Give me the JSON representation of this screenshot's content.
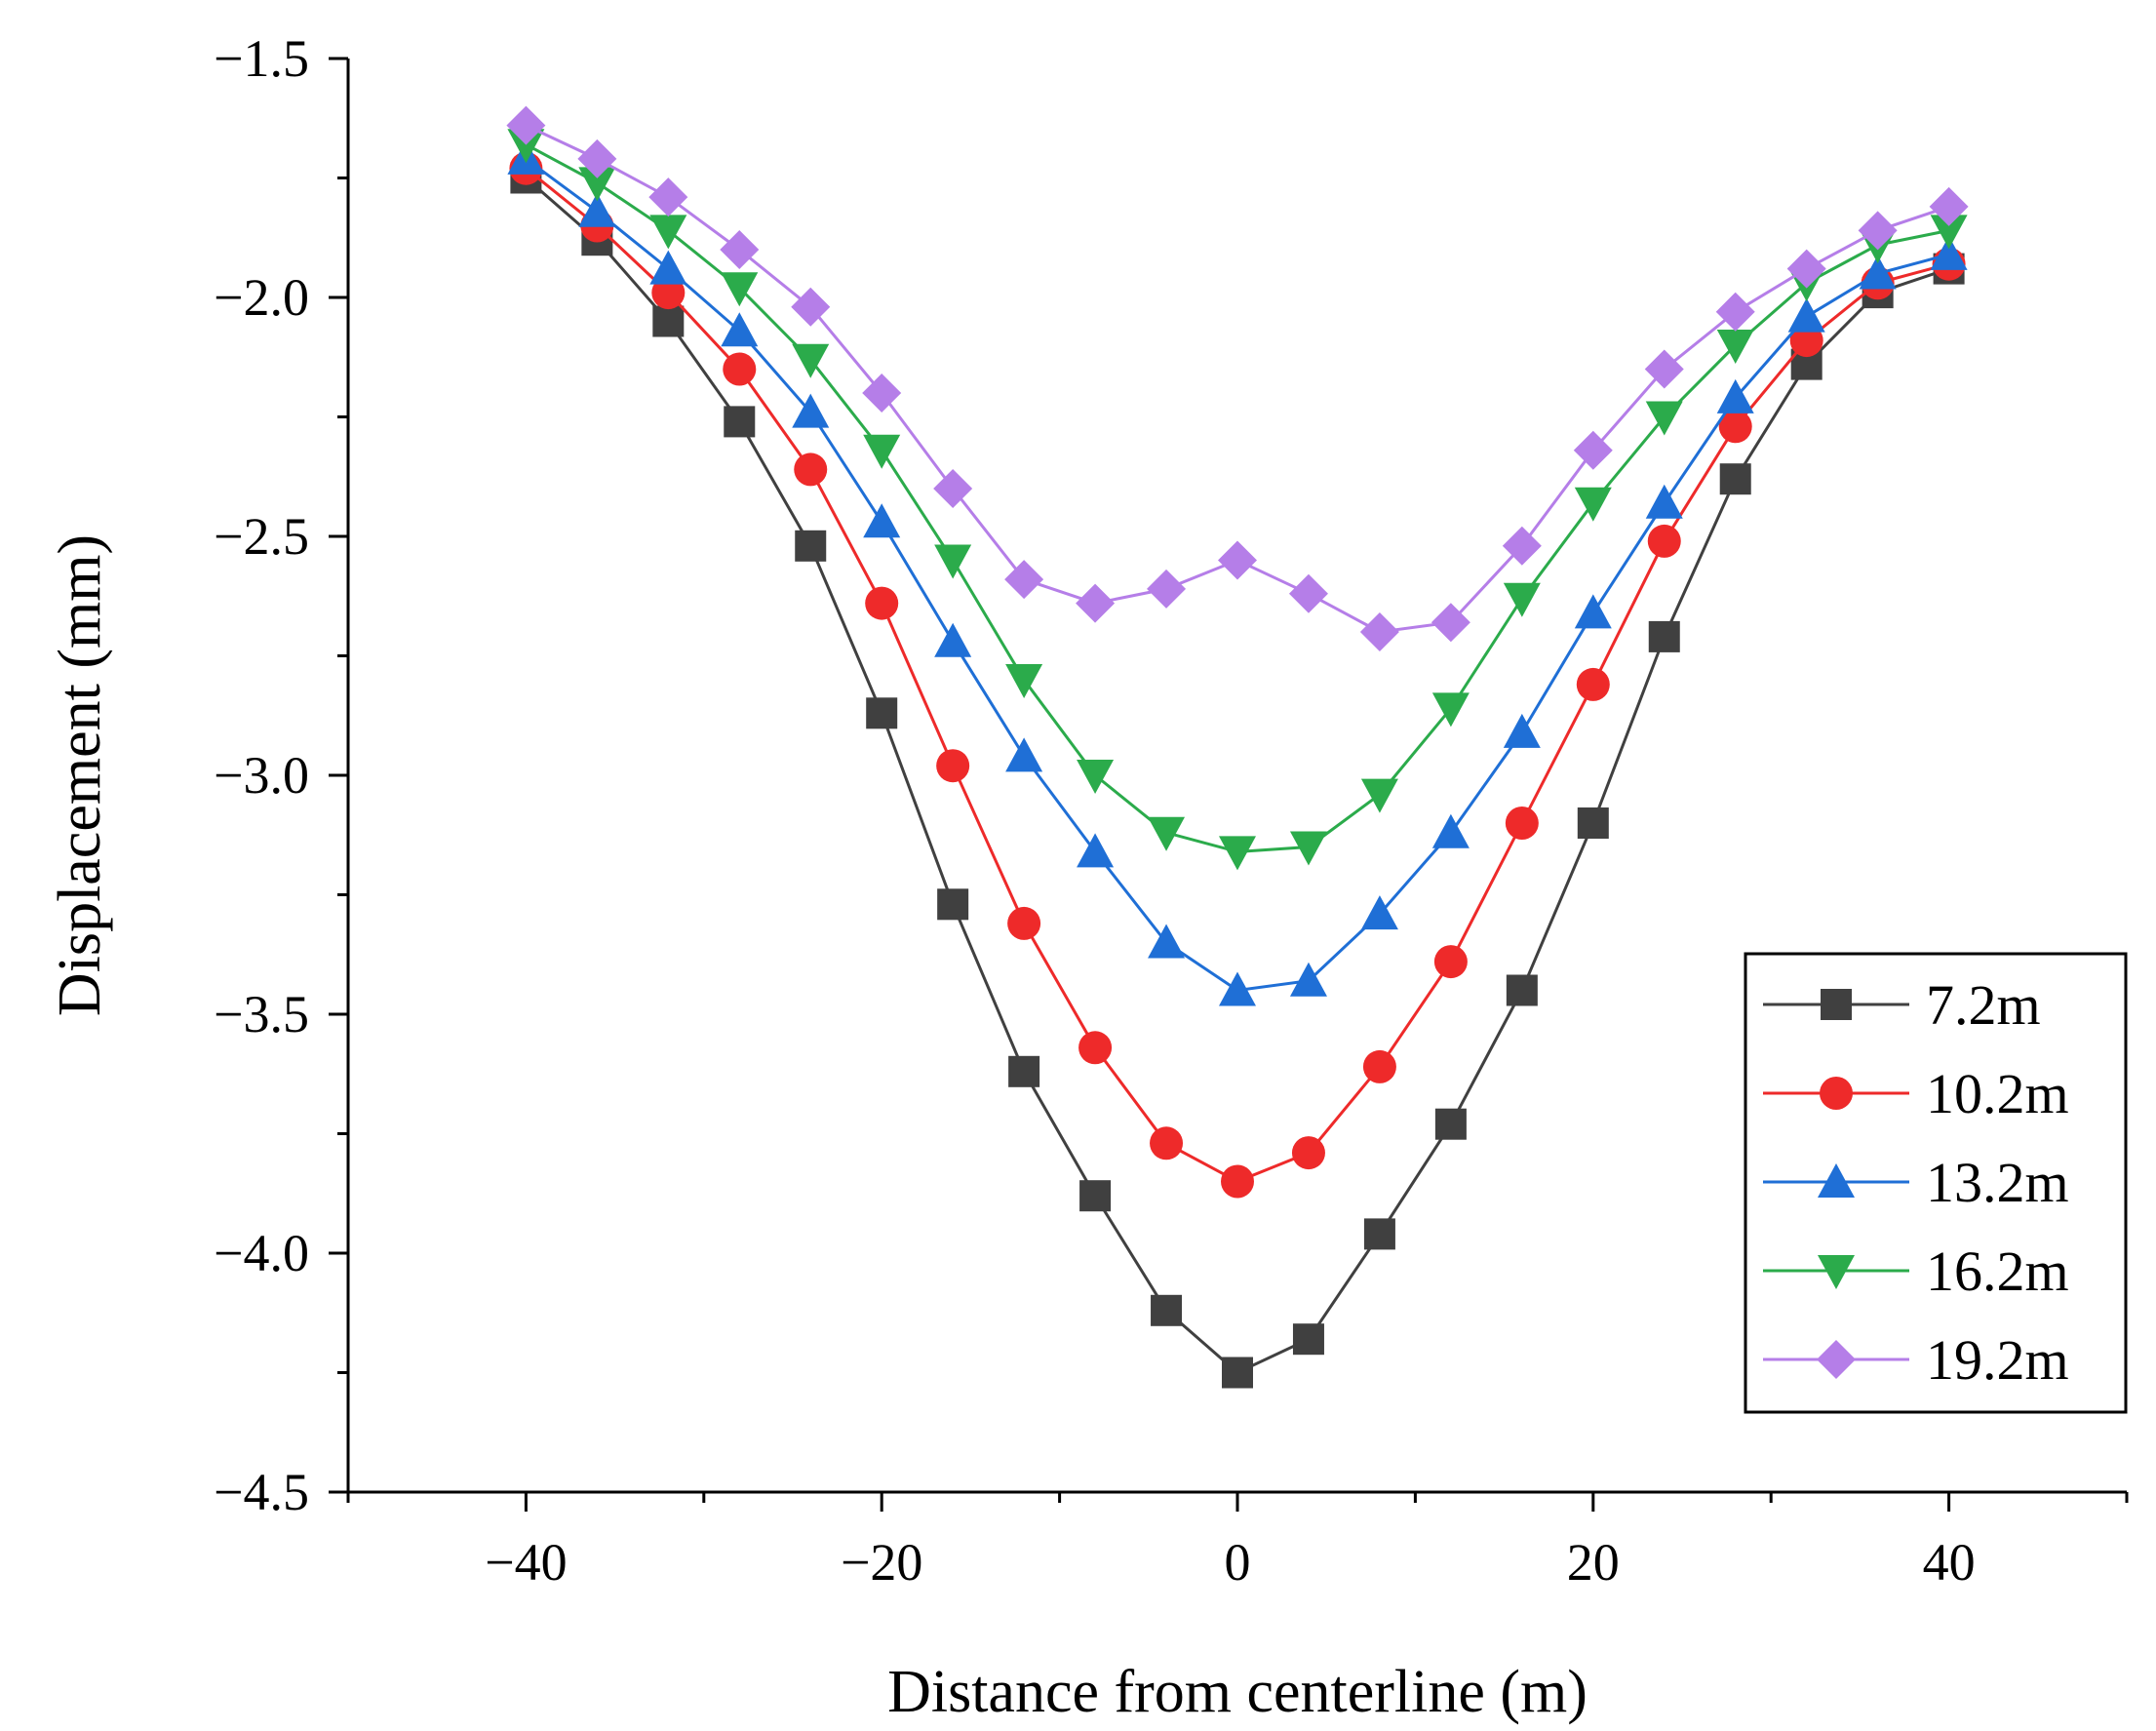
{
  "chart_data": {
    "type": "line",
    "xlabel": "Distance from centerline (m)",
    "ylabel": "Displacement (mm)",
    "xlim": [
      -50,
      50
    ],
    "ylim": [
      -4.5,
      -1.5
    ],
    "xticks": [
      -40,
      -20,
      0,
      20,
      40
    ],
    "xtick_labels": [
      "−40",
      "−20",
      "0",
      "20",
      "40"
    ],
    "yticks": [
      -1.5,
      -2.0,
      -2.5,
      -3.0,
      -3.5,
      -4.0,
      -4.5
    ],
    "ytick_labels": [
      "−1.5",
      "−2.0",
      "−2.5",
      "−3.0",
      "−3.5",
      "−4.0",
      "−4.5"
    ],
    "grid": false,
    "legend_position": "bottom-right",
    "x": [
      -40,
      -36,
      -32,
      -28,
      -24,
      -20,
      -16,
      -12,
      -8,
      -4,
      0,
      4,
      8,
      12,
      16,
      20,
      24,
      28,
      32,
      36,
      40
    ],
    "series": [
      {
        "name": "7.2m",
        "color": "#404040",
        "marker": "square",
        "values": [
          -1.75,
          -1.88,
          -2.05,
          -2.26,
          -2.52,
          -2.87,
          -3.27,
          -3.62,
          -3.88,
          -4.12,
          -4.25,
          -4.18,
          -3.96,
          -3.73,
          -3.45,
          -3.1,
          -2.71,
          -2.38,
          -2.14,
          -1.99,
          -1.94
        ]
      },
      {
        "name": "10.2m",
        "color": "#ee2a2a",
        "marker": "circle",
        "values": [
          -1.73,
          -1.85,
          -1.99,
          -2.15,
          -2.36,
          -2.64,
          -2.98,
          -3.31,
          -3.57,
          -3.77,
          -3.85,
          -3.79,
          -3.61,
          -3.39,
          -3.1,
          -2.81,
          -2.51,
          -2.27,
          -2.09,
          -1.97,
          -1.93
        ]
      },
      {
        "name": "13.2m",
        "color": "#1f6fd6",
        "marker": "triangle-up",
        "values": [
          -1.71,
          -1.82,
          -1.94,
          -2.07,
          -2.24,
          -2.47,
          -2.72,
          -2.96,
          -3.16,
          -3.35,
          -3.45,
          -3.43,
          -3.29,
          -3.12,
          -2.91,
          -2.66,
          -2.43,
          -2.21,
          -2.04,
          -1.95,
          -1.91
        ]
      },
      {
        "name": "16.2m",
        "color": "#2bab4b",
        "marker": "triangle-down",
        "values": [
          -1.68,
          -1.76,
          -1.86,
          -1.98,
          -2.13,
          -2.32,
          -2.55,
          -2.8,
          -3.0,
          -3.12,
          -3.16,
          -3.15,
          -3.04,
          -2.86,
          -2.63,
          -2.43,
          -2.25,
          -2.1,
          -1.97,
          -1.89,
          -1.86
        ]
      },
      {
        "name": "19.2m",
        "color": "#b57ee8",
        "marker": "diamond",
        "values": [
          -1.64,
          -1.71,
          -1.79,
          -1.9,
          -2.02,
          -2.2,
          -2.4,
          -2.59,
          -2.64,
          -2.61,
          -2.55,
          -2.62,
          -2.7,
          -2.68,
          -2.52,
          -2.32,
          -2.15,
          -2.03,
          -1.94,
          -1.86,
          -1.81
        ]
      }
    ]
  }
}
